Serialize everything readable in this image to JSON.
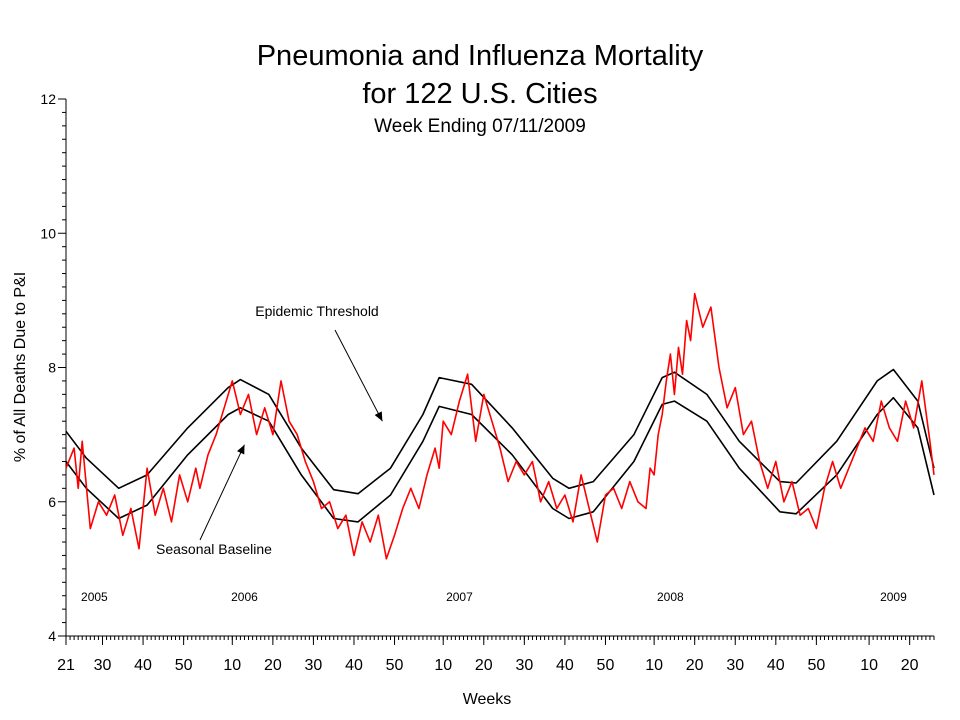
{
  "title": "Pneumonia and Influenza Mortality",
  "title_line2": "for 122 U.S. Cities",
  "subtitle": "Week Ending 07/11/2009",
  "chart_data": {
    "type": "line",
    "title": "Pneumonia and Influenza Mortality for 122 U.S. Cities",
    "subtitle": "Week Ending 07/11/2009",
    "xlabel": "Weeks",
    "ylabel": "% of All Deaths Due to P&I",
    "ylim": [
      4,
      12
    ],
    "yticks": [
      4,
      6,
      8,
      10,
      12
    ],
    "xticks": [
      {
        "label": "21",
        "week": 0
      },
      {
        "label": "30",
        "week": 9
      },
      {
        "label": "40",
        "week": 19
      },
      {
        "label": "50",
        "week": 29
      },
      {
        "label": "10",
        "week": 41
      },
      {
        "label": "20",
        "week": 51
      },
      {
        "label": "30",
        "week": 61
      },
      {
        "label": "40",
        "week": 71
      },
      {
        "label": "50",
        "week": 81
      },
      {
        "label": "10",
        "week": 93
      },
      {
        "label": "20",
        "week": 103
      },
      {
        "label": "30",
        "week": 113
      },
      {
        "label": "40",
        "week": 123
      },
      {
        "label": "50",
        "week": 133
      },
      {
        "label": "10",
        "week": 145
      },
      {
        "label": "20",
        "week": 155
      },
      {
        "label": "30",
        "week": 165
      },
      {
        "label": "40",
        "week": 175
      },
      {
        "label": "50",
        "week": 185
      },
      {
        "label": "10",
        "week": 198
      },
      {
        "label": "20",
        "week": 208
      }
    ],
    "xrange": [
      0,
      214
    ],
    "years": [
      {
        "label": "2005",
        "week": 7
      },
      {
        "label": "2006",
        "week": 44
      },
      {
        "label": "2007",
        "week": 97
      },
      {
        "label": "2008",
        "week": 149
      },
      {
        "label": "2009",
        "week": 204
      }
    ],
    "annotations": [
      {
        "text": "Epidemic Threshold",
        "points_to_week": 78,
        "points_to_value": 7.2
      },
      {
        "text": "Seasonal Baseline",
        "points_to_week": 44,
        "points_to_value": 6.85
      }
    ],
    "series": [
      {
        "name": "Epidemic Threshold",
        "color": "#000000",
        "x": [
          0,
          5,
          13,
          20,
          30,
          40,
          43,
          50,
          58,
          66,
          72,
          80,
          88,
          92,
          100,
          110,
          120,
          124,
          130,
          140,
          147,
          150,
          158,
          166,
          176,
          180,
          190,
          200,
          204,
          210,
          214
        ],
        "y": [
          7.05,
          6.65,
          6.2,
          6.4,
          7.1,
          7.7,
          7.82,
          7.6,
          6.8,
          6.18,
          6.12,
          6.5,
          7.3,
          7.85,
          7.75,
          7.1,
          6.35,
          6.2,
          6.3,
          7.0,
          7.85,
          7.93,
          7.6,
          6.9,
          6.3,
          6.28,
          6.9,
          7.8,
          7.97,
          7.5,
          6.5
        ]
      },
      {
        "name": "Seasonal Baseline",
        "color": "#000000",
        "x": [
          0,
          5,
          13,
          20,
          30,
          40,
          43,
          50,
          58,
          66,
          72,
          80,
          88,
          92,
          100,
          110,
          120,
          124,
          130,
          140,
          147,
          150,
          158,
          166,
          176,
          180,
          190,
          200,
          204,
          210,
          214
        ],
        "y": [
          6.6,
          6.2,
          5.75,
          5.95,
          6.7,
          7.3,
          7.4,
          7.2,
          6.4,
          5.75,
          5.7,
          6.1,
          6.9,
          7.42,
          7.3,
          6.7,
          5.9,
          5.75,
          5.85,
          6.6,
          7.45,
          7.5,
          7.2,
          6.5,
          5.85,
          5.82,
          6.4,
          7.3,
          7.55,
          7.1,
          6.1
        ]
      },
      {
        "name": "",
        "color": "#ff0000",
        "x": [
          0,
          2,
          3,
          4,
          6,
          8,
          10,
          12,
          14,
          16,
          18,
          20,
          22,
          24,
          26,
          28,
          30,
          32,
          33,
          35,
          37,
          39,
          41,
          43,
          45,
          47,
          49,
          51,
          53,
          55,
          57,
          59,
          61,
          63,
          65,
          67,
          69,
          71,
          73,
          75,
          77,
          79,
          81,
          83,
          85,
          87,
          89,
          91,
          92,
          93,
          95,
          97,
          99,
          101,
          103,
          105,
          107,
          109,
          111,
          113,
          115,
          117,
          119,
          121,
          123,
          125,
          127,
          129,
          131,
          133,
          135,
          137,
          139,
          141,
          143,
          144,
          145,
          146,
          147,
          148,
          149,
          150,
          151,
          152,
          153,
          154,
          155,
          157,
          159,
          161,
          163,
          165,
          167,
          169,
          171,
          173,
          175,
          177,
          179,
          181,
          183,
          185,
          187,
          189,
          191,
          193,
          195,
          197,
          199,
          201,
          203,
          205,
          207,
          209,
          211,
          213,
          214
        ],
        "y": [
          6.5,
          6.8,
          6.2,
          6.9,
          5.6,
          6.0,
          5.8,
          6.1,
          5.5,
          5.9,
          5.3,
          6.5,
          5.8,
          6.2,
          5.7,
          6.4,
          6.0,
          6.5,
          6.2,
          6.7,
          7.0,
          7.4,
          7.8,
          7.3,
          7.6,
          7.0,
          7.4,
          7.0,
          7.8,
          7.2,
          7.0,
          6.6,
          6.3,
          5.9,
          6.0,
          5.6,
          5.8,
          5.2,
          5.7,
          5.4,
          5.8,
          5.15,
          5.5,
          5.9,
          6.2,
          5.9,
          6.4,
          6.8,
          6.5,
          7.2,
          7.0,
          7.5,
          7.9,
          6.9,
          7.6,
          7.2,
          6.8,
          6.3,
          6.6,
          6.4,
          6.6,
          6.0,
          6.3,
          5.9,
          6.1,
          5.7,
          6.4,
          5.9,
          5.4,
          6.1,
          6.2,
          5.9,
          6.3,
          6.0,
          5.9,
          6.5,
          6.4,
          7.0,
          7.3,
          7.8,
          8.2,
          7.6,
          8.3,
          7.9,
          8.7,
          8.4,
          9.1,
          8.6,
          8.9,
          8.0,
          7.4,
          7.7,
          7.0,
          7.2,
          6.6,
          6.2,
          6.6,
          6.0,
          6.3,
          5.8,
          5.9,
          5.6,
          6.2,
          6.6,
          6.2,
          6.5,
          6.8,
          7.1,
          6.9,
          7.5,
          7.1,
          6.9,
          7.5,
          7.1,
          7.8,
          6.9,
          6.4
        ],
        "note": "red weekly observed series"
      }
    ]
  }
}
